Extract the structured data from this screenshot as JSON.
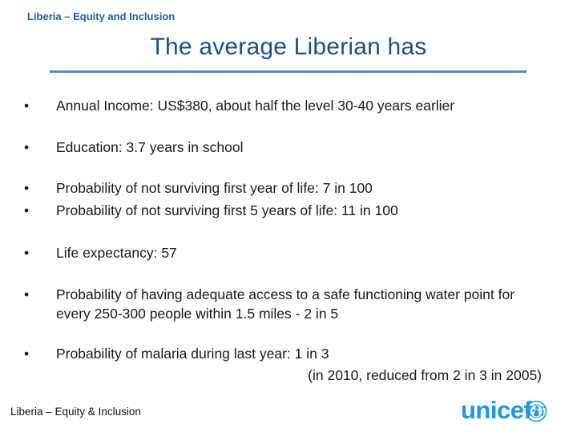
{
  "header": {
    "label": "Liberia – Equity and Inclusion"
  },
  "title": "The average Liberian has",
  "bullets": [
    {
      "text": "Annual Income: US$380, about half the level 30-40 years earlier"
    },
    {
      "text": "Education: 3.7 years in school"
    },
    {
      "text": "Probability of not surviving first year of life: 7 in 100"
    },
    {
      "text": "Probability of not surviving first 5 years of life: 11 in 100"
    },
    {
      "text": "Life expectancy: 57"
    },
    {
      "text": "Probability of having adequate access to a safe functioning water point for every 250-300 people within 1.5 miles - 2 in 5"
    },
    {
      "text": "Probability of malaria during last year: 1 in 3"
    }
  ],
  "bullet_symbol": "•",
  "malaria_note": "(in 2010, reduced from 2 in 3 in 2005)",
  "footer": {
    "label": "Liberia – Equity & Inclusion"
  },
  "logo": {
    "text": "unicef",
    "icon": "unicef-emblem-icon",
    "color": "#1b9be3"
  }
}
